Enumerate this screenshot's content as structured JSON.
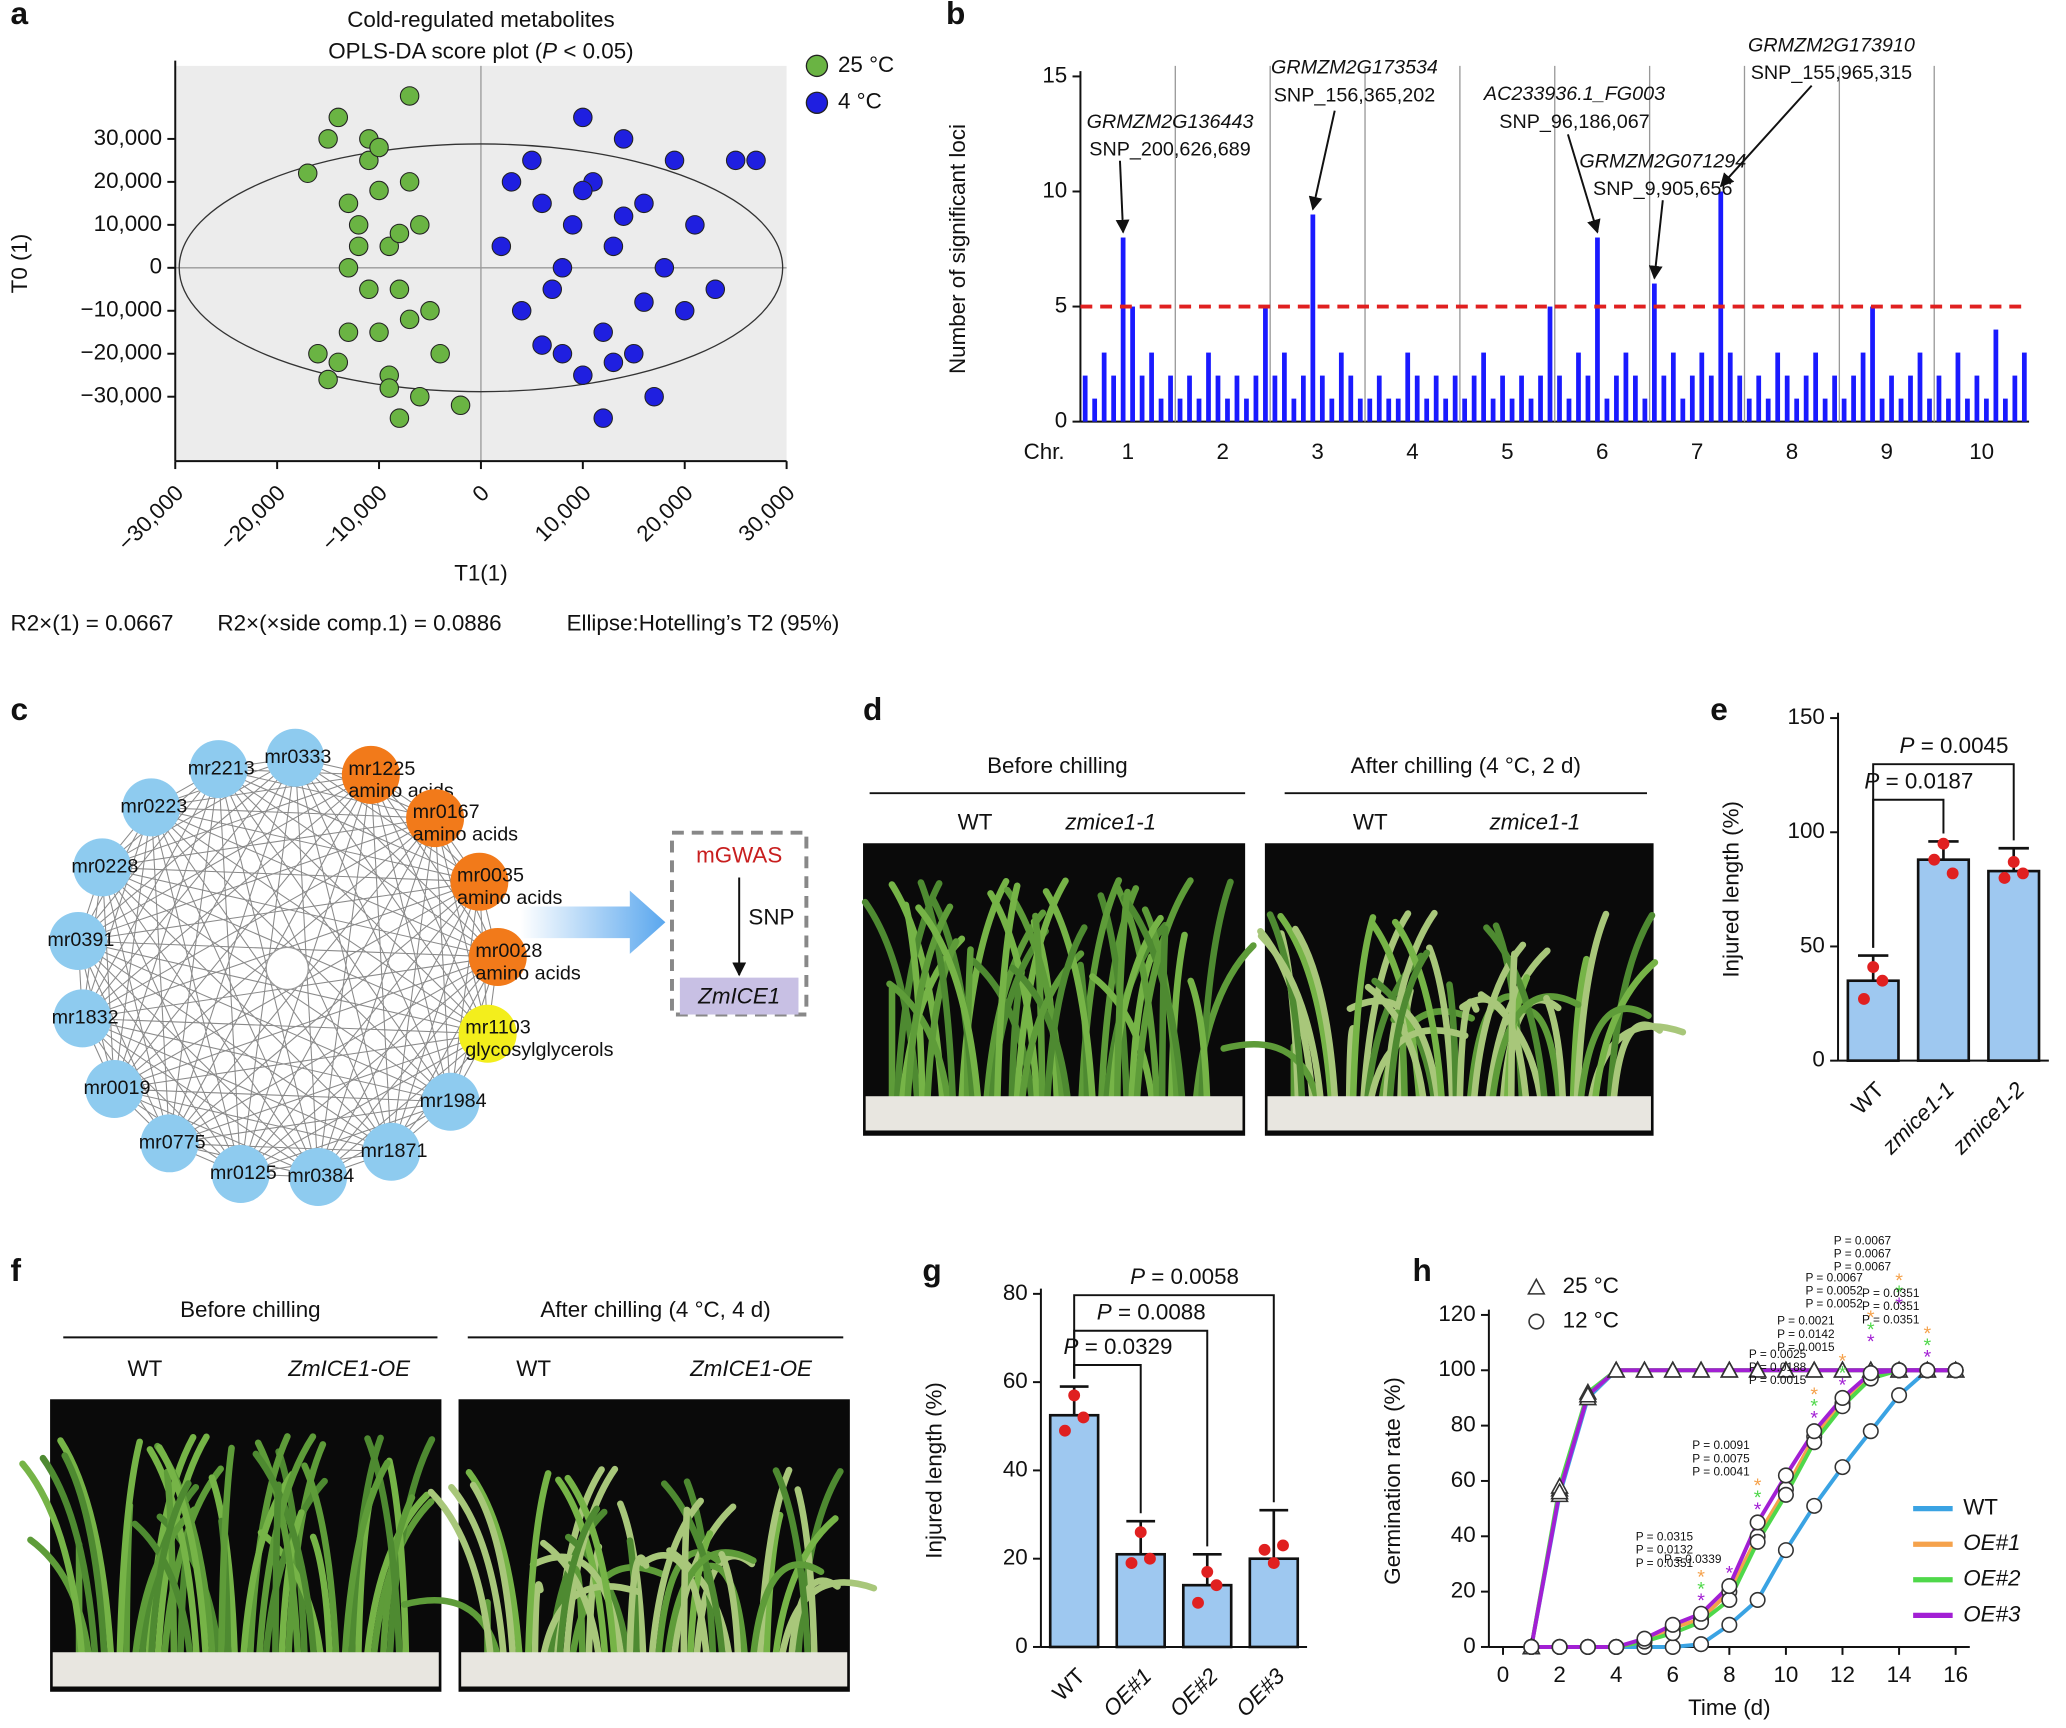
{
  "chart_data": [
    {
      "type": "scatter",
      "panel": "a",
      "title": "Cold-regulated metabolites",
      "subtitle_parts": [
        "OPLS-DA score plot (",
        "P",
        " < 0.05)"
      ],
      "xlabel": "T1(1)",
      "ylabel": "T0 (1)",
      "footnotes": [
        "R2×(1) = 0.0667",
        "R2×(×side comp.1) = 0.0886",
        "Ellipse:Hotelling’s T2 (95%)"
      ],
      "xlim": [
        -30000,
        30000
      ],
      "ylim": [
        -45000,
        47000
      ],
      "xticks": [
        {
          "value": -30000,
          "label": "−30,000"
        },
        {
          "value": -20000,
          "label": "−20,000"
        },
        {
          "value": -10000,
          "label": "−10,000"
        },
        0,
        {
          "value": 10000,
          "label": "10,000"
        },
        {
          "value": 20000,
          "label": "20,000"
        },
        {
          "value": 30000,
          "label": "30,000"
        }
      ],
      "yticks": [
        {
          "value": -30000,
          "label": "−30,000"
        },
        {
          "value": -20000,
          "label": "−20,000"
        },
        {
          "value": -10000,
          "label": "−10,000"
        },
        0,
        {
          "value": 10000,
          "label": "10,000"
        },
        {
          "value": 20000,
          "label": "20,000"
        },
        {
          "value": 30000,
          "label": "30,000"
        }
      ],
      "ellipse": true,
      "series": [
        {
          "name": "25 °C",
          "color": "#6ab443",
          "x": [
            -17000,
            -15000,
            -14000,
            -13000,
            -12000,
            -11000,
            -10000,
            -9000,
            -8000,
            -7000,
            -6000,
            -5000,
            -16000,
            -13000,
            -11000,
            -9000,
            -7000,
            -4000,
            -12000,
            -10000,
            -8000,
            -14000,
            -11000,
            -9000,
            -6000,
            -13000,
            -10000,
            -8000,
            -15000,
            -2000,
            -7000
          ],
          "values": [
            22000,
            30000,
            35000,
            15000,
            5000,
            -5000,
            -15000,
            -25000,
            -35000,
            20000,
            10000,
            -10000,
            -20000,
            0,
            25000,
            -28000,
            -12000,
            -20000,
            10000,
            18000,
            -5000,
            -22000,
            30000,
            5000,
            -30000,
            -15000,
            28000,
            8000,
            -26000,
            -32000,
            40000
          ]
        },
        {
          "name": "4 °C",
          "color": "#1f1fe0",
          "x": [
            2000,
            3000,
            4000,
            5000,
            6000,
            7000,
            8000,
            9000,
            10000,
            11000,
            12000,
            13000,
            14000,
            15000,
            16000,
            17000,
            18000,
            19000,
            20000,
            21000,
            23000,
            25000,
            27000,
            8000,
            10000,
            12000,
            14000,
            16000,
            6000,
            10000,
            13000
          ],
          "values": [
            5000,
            20000,
            -10000,
            25000,
            15000,
            -5000,
            0,
            10000,
            -25000,
            20000,
            -15000,
            5000,
            30000,
            -20000,
            15000,
            -30000,
            0,
            25000,
            -10000,
            10000,
            -5000,
            25000,
            25000,
            -20000,
            35000,
            -35000,
            12000,
            -8000,
            -18000,
            18000,
            -22000
          ]
        }
      ]
    },
    {
      "type": "bar",
      "panel": "b",
      "ylabel": "Number of significant loci",
      "xlabel": "Chr.",
      "color": "#1a1aff",
      "ylim": [
        0,
        15
      ],
      "yticks": [
        0,
        5,
        10,
        15
      ],
      "threshold": 5,
      "threshold_color": "#e02020",
      "groups": [
        {
          "label": "1",
          "values": [
            2,
            1,
            3,
            2,
            8,
            5,
            2,
            3,
            1,
            2
          ]
        },
        {
          "label": "2",
          "values": [
            1,
            2,
            1,
            3,
            2,
            1,
            2,
            1,
            2,
            5
          ]
        },
        {
          "label": "3",
          "values": [
            2,
            3,
            1,
            2,
            9,
            2,
            1,
            3,
            2,
            1
          ]
        },
        {
          "label": "4",
          "values": [
            1,
            2,
            1,
            1,
            3,
            2,
            1,
            2,
            1,
            2
          ]
        },
        {
          "label": "5",
          "values": [
            1,
            2,
            3,
            1,
            2,
            1,
            2,
            1,
            2,
            5
          ]
        },
        {
          "label": "6",
          "values": [
            2,
            1,
            3,
            2,
            8,
            1,
            2,
            3,
            2,
            1
          ]
        },
        {
          "label": "7",
          "values": [
            6,
            2,
            3,
            1,
            2,
            3,
            2,
            10,
            3,
            2
          ]
        },
        {
          "label": "8",
          "values": [
            1,
            2,
            1,
            3,
            2,
            1,
            2,
            3,
            1,
            2
          ]
        },
        {
          "label": "9",
          "values": [
            1,
            2,
            3,
            5,
            1,
            2,
            1,
            2,
            3,
            1
          ]
        },
        {
          "label": "10",
          "values": [
            2,
            1,
            3,
            1,
            2,
            1,
            4,
            1,
            2,
            3
          ]
        }
      ],
      "annotations": [
        {
          "gene": "GRMZM2G136443",
          "snp": "SNP_200,626,689"
        },
        {
          "gene": "GRMZM2G173534",
          "snp": "SNP_156,365,202"
        },
        {
          "gene": "AC233936.1_FG003",
          "snp": "SNP_96,186,067"
        },
        {
          "gene": "GRMZM2G071294",
          "snp": "SNP_9,905,656"
        },
        {
          "gene": "GRMZM2G173910",
          "snp": "SNP_155,965,315"
        }
      ]
    },
    {
      "type": "bar",
      "panel": "e",
      "ylabel": "Injured length (%)",
      "color": "#9ec8f0",
      "point_color": "#e02020",
      "categories": [
        "WT",
        "zmice1-1",
        "zmice1-2"
      ],
      "category_italic": [
        false,
        true,
        true
      ],
      "values": [
        35,
        88,
        83
      ],
      "errors": [
        11,
        8,
        10
      ],
      "points": [
        [
          41,
          27,
          35
        ],
        [
          95,
          88,
          82
        ],
        [
          87,
          80,
          82
        ]
      ],
      "ylim": [
        0,
        150
      ],
      "yticks": [
        0,
        50,
        100,
        150
      ],
      "comparisons": [
        {
          "parts": [
            "P",
            " = 0.0045"
          ]
        },
        {
          "parts": [
            "P",
            " = 0.0187"
          ]
        }
      ]
    },
    {
      "type": "bar",
      "panel": "g",
      "ylabel": "Injured length (%)",
      "color": "#9ec8f0",
      "point_color": "#e02020",
      "categories": [
        "WT",
        "OE#1",
        "OE#2",
        "OE#3"
      ],
      "category_italic": [
        false,
        true,
        true,
        true
      ],
      "values": [
        52.5,
        21,
        14,
        20
      ],
      "errors": [
        6.5,
        7.5,
        7,
        11
      ],
      "points": [
        [
          57,
          49,
          52
        ],
        [
          26,
          19,
          20
        ],
        [
          17,
          10,
          14
        ],
        [
          19,
          22,
          23
        ]
      ],
      "ylim": [
        0,
        80
      ],
      "yticks": [
        0,
        20,
        40,
        60,
        80
      ],
      "comparisons": [
        {
          "parts": [
            "P",
            " = 0.0058"
          ]
        },
        {
          "parts": [
            "P",
            " = 0.0088"
          ]
        },
        {
          "parts": [
            "P",
            " = 0.0329"
          ]
        }
      ]
    },
    {
      "type": "line",
      "panel": "h",
      "xlabel": "Time (d)",
      "ylabel": "Germination rate (%)",
      "xlim": [
        -0.5,
        16.5
      ],
      "xticks": [
        0,
        2,
        4,
        6,
        8,
        10,
        12,
        14,
        16
      ],
      "ylim": [
        0,
        120
      ],
      "yticks": [
        0,
        20,
        40,
        60,
        80,
        100,
        120
      ],
      "markers": [
        {
          "label": "25 °C"
        },
        {
          "label": "12 °C"
        }
      ],
      "x": [
        1,
        2,
        3,
        4,
        5,
        6,
        7,
        8,
        9,
        10,
        11,
        12,
        13,
        14,
        15,
        16
      ],
      "series": [
        {
          "name": "WT",
          "color": "#3aa3e3",
          "values_25": [
            0,
            55,
            90,
            100,
            100,
            100,
            100,
            100,
            100,
            100,
            100,
            100,
            100,
            100,
            100,
            100
          ],
          "values": [
            0,
            0,
            0,
            0,
            0,
            0,
            1,
            8,
            17,
            35,
            51,
            65,
            78,
            91,
            100,
            100
          ]
        },
        {
          "name": "OE#1",
          "color": "#f5a24c",
          "values_25": [
            0,
            57,
            91,
            100,
            100,
            100,
            100,
            100,
            100,
            100,
            100,
            100,
            100,
            100,
            100,
            100
          ],
          "values": [
            0,
            0,
            0,
            0,
            2,
            7,
            10,
            20,
            40,
            57,
            76,
            88,
            98,
            100,
            100,
            100
          ]
        },
        {
          "name": "OE#2",
          "color": "#4fd84a",
          "values_25": [
            0,
            58,
            92,
            100,
            100,
            100,
            100,
            100,
            100,
            100,
            100,
            100,
            100,
            100,
            100,
            100
          ],
          "values": [
            0,
            0,
            0,
            0,
            2,
            5,
            9,
            17,
            38,
            55,
            74,
            87,
            97,
            100,
            100,
            100
          ]
        },
        {
          "name": "OE#3",
          "color": "#a21fd4",
          "values_25": [
            0,
            56,
            91,
            100,
            100,
            100,
            100,
            100,
            100,
            100,
            100,
            100,
            100,
            100,
            100,
            100
          ],
          "values": [
            0,
            0,
            0,
            0,
            3,
            8,
            12,
            22,
            45,
            62,
            78,
            90,
            99,
            100,
            100,
            100
          ]
        }
      ],
      "star": "*",
      "annotations": [
        {
          "x": 7,
          "lines": [
            {
              "text": "P = 0.0315",
              "series": 1
            },
            {
              "text": "P = 0.0132",
              "series": 2
            },
            {
              "text": "P = 0.0351",
              "series": 3
            }
          ]
        },
        {
          "x": 8,
          "lines": [
            {
              "text": "P = 0.0339",
              "series": 3
            }
          ]
        },
        {
          "x": 9,
          "lines": [
            {
              "text": "P = 0.0091",
              "series": 1
            },
            {
              "text": "P = 0.0075",
              "series": 2
            },
            {
              "text": "P = 0.0041",
              "series": 3
            }
          ]
        },
        {
          "x": 11,
          "lines": [
            {
              "text": "P = 0.0025",
              "series": 1
            },
            {
              "text": "P = 0.0188",
              "series": 2
            },
            {
              "text": "P = 0.0015",
              "series": 3
            }
          ]
        },
        {
          "x": 12,
          "lines": [
            {
              "text": "P = 0.0021",
              "series": 1
            },
            {
              "text": "P = 0.0142",
              "series": 2
            },
            {
              "text": "P = 0.0015",
              "series": 3
            }
          ]
        },
        {
          "x": 13,
          "lines": [
            {
              "text": "P = 0.0067",
              "series": 1
            },
            {
              "text": "P = 0.0052",
              "series": 2
            },
            {
              "text": "P = 0.0052",
              "series": 3
            }
          ]
        },
        {
          "x": 14,
          "lines": [
            {
              "text": "P = 0.0067",
              "series": 1
            },
            {
              "text": "P = 0.0067",
              "series": 2
            },
            {
              "text": "P = 0.0067",
              "series": 3
            }
          ]
        },
        {
          "x": 15,
          "lines": [
            {
              "text": "P = 0.0351",
              "series": 1
            },
            {
              "text": "P = 0.0351",
              "series": 2
            },
            {
              "text": "P = 0.0351",
              "series": 3
            }
          ]
        }
      ]
    }
  ],
  "network": {
    "panel": "c",
    "nodes": [
      {
        "label": "mr2213",
        "color": "#8ecbef"
      },
      {
        "label": "mr0333",
        "color": "#8ecbef"
      },
      {
        "label": "mr1225",
        "class": "amino acids",
        "color": "#f27a1a"
      },
      {
        "label": "mr0167",
        "class": "amino acids",
        "color": "#f27a1a"
      },
      {
        "label": "mr0035",
        "class": "amino acids",
        "color": "#f27a1a"
      },
      {
        "label": "mr0028",
        "class": "amino acids",
        "color": "#f27a1a"
      },
      {
        "label": "mr1103",
        "class": "glycosylglycerols",
        "color": "#f3ee1c"
      },
      {
        "label": "mr1984",
        "color": "#8ecbef"
      },
      {
        "label": "mr1871",
        "color": "#8ecbef"
      },
      {
        "label": "mr0384",
        "color": "#8ecbef"
      },
      {
        "label": "mr0125",
        "color": "#8ecbef"
      },
      {
        "label": "mr0775",
        "color": "#8ecbef"
      },
      {
        "label": "mr0019",
        "color": "#8ecbef"
      },
      {
        "label": "mr1832",
        "color": "#8ecbef"
      },
      {
        "label": "mr0391",
        "color": "#8ecbef"
      },
      {
        "label": "mr0228",
        "color": "#8ecbef"
      },
      {
        "label": "mr0223",
        "color": "#8ecbef"
      }
    ],
    "box": {
      "top": "mGWAS",
      "arrow": "SNP",
      "gene": "ZmICE1"
    }
  },
  "photos": [
    {
      "panel": "d",
      "headers": [
        "Before chilling",
        "After chilling (4 °C, 2 d)"
      ],
      "labels": [
        [
          "WT",
          "zmice1-1"
        ],
        [
          "WT",
          "zmice1-1"
        ]
      ]
    },
    {
      "panel": "f",
      "headers": [
        "Before chilling",
        "After chilling (4 °C, 4 d)"
      ],
      "labels": [
        [
          "WT",
          "ZmICE1-OE"
        ],
        [
          "WT",
          "ZmICE1-OE"
        ]
      ]
    }
  ]
}
